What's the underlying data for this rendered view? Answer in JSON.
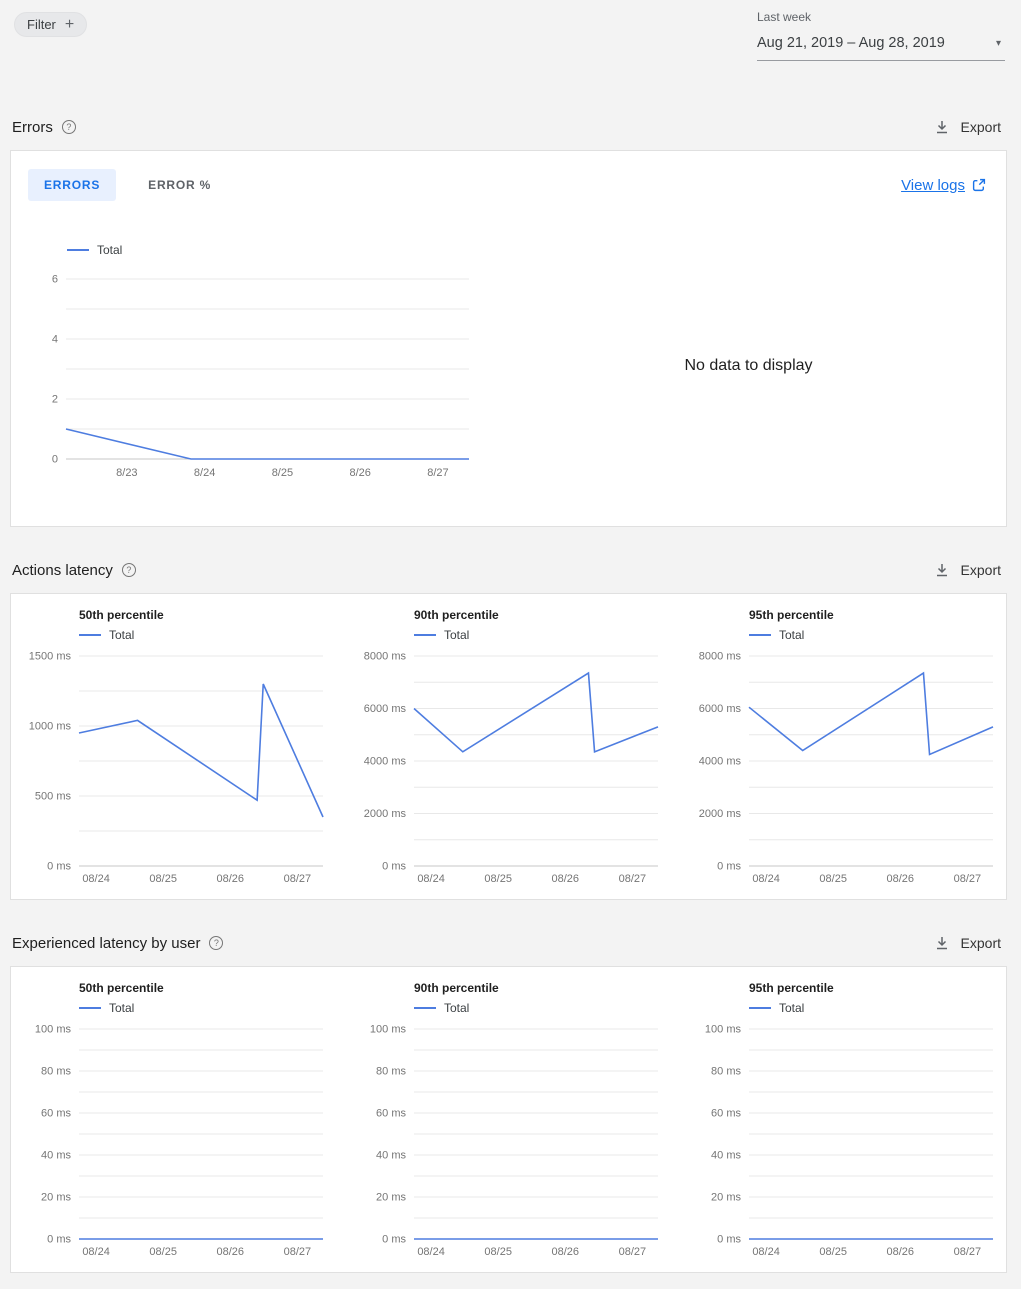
{
  "colors": {
    "line": "#4e7de0",
    "link": "#1a73e8",
    "tab_active_bg": "#e8f0fe"
  },
  "icons": {
    "plus": "+",
    "caret_down": "▾",
    "question": "?"
  },
  "toolbar": {
    "filter_label": "Filter",
    "period_label": "Last week",
    "date_range": "Aug 21, 2019 – Aug 28, 2019"
  },
  "errors_section": {
    "title": "Errors",
    "export_label": "Export",
    "tabs": [
      {
        "label": "ERRORS",
        "active": true
      },
      {
        "label": "ERROR %",
        "active": false
      }
    ],
    "view_logs_label": "View logs",
    "no_data_text": "No data to display"
  },
  "actions_latency_section": {
    "title": "Actions latency",
    "export_label": "Export"
  },
  "experienced_latency_section": {
    "title": "Experienced latency by user",
    "export_label": "Export"
  },
  "chart_data": [
    {
      "id": "errors-total",
      "type": "line",
      "title": "Errors",
      "ylim": [
        0,
        6
      ],
      "y_major_step": 2,
      "y_minor_step": 1,
      "y_suffix": "",
      "grid": true,
      "legend_position": "top-left",
      "x_unit": "fraction of plot width",
      "x_ticks": [
        {
          "label": "8/23",
          "pos": 0.151
        },
        {
          "label": "8/24",
          "pos": 0.344
        },
        {
          "label": "8/25",
          "pos": 0.537
        },
        {
          "label": "8/26",
          "pos": 0.73
        },
        {
          "label": "8/27",
          "pos": 0.923
        }
      ],
      "series": [
        {
          "name": "Total",
          "points": [
            [
              0,
              1
            ],
            [
              0.31,
              0
            ],
            [
              1,
              0
            ]
          ]
        }
      ]
    },
    {
      "id": "actions-latency-p50",
      "type": "line",
      "title": "50th percentile",
      "ylim": [
        0,
        1500
      ],
      "y_major_step": 500,
      "y_minor_step": 250,
      "y_suffix": " ms",
      "grid": true,
      "legend_position": "top-left",
      "x_unit": "fraction of plot width",
      "x_ticks": [
        {
          "label": "08/24",
          "pos": 0.07
        },
        {
          "label": "08/25",
          "pos": 0.345
        },
        {
          "label": "08/26",
          "pos": 0.62
        },
        {
          "label": "08/27",
          "pos": 0.895
        }
      ],
      "series": [
        {
          "name": "Total",
          "points": [
            [
              0,
              950
            ],
            [
              0.24,
              1040
            ],
            [
              0.73,
              470
            ],
            [
              0.755,
              1300
            ],
            [
              1,
              350
            ]
          ]
        }
      ]
    },
    {
      "id": "actions-latency-p90",
      "type": "line",
      "title": "90th percentile",
      "ylim": [
        0,
        8000
      ],
      "y_major_step": 2000,
      "y_minor_step": 1000,
      "y_suffix": " ms",
      "grid": true,
      "legend_position": "top-left",
      "x_unit": "fraction of plot width",
      "x_ticks": [
        {
          "label": "08/24",
          "pos": 0.07
        },
        {
          "label": "08/25",
          "pos": 0.345
        },
        {
          "label": "08/26",
          "pos": 0.62
        },
        {
          "label": "08/27",
          "pos": 0.895
        }
      ],
      "series": [
        {
          "name": "Total",
          "points": [
            [
              0,
              6000
            ],
            [
              0.2,
              4350
            ],
            [
              0.715,
              7350
            ],
            [
              0.74,
              4350
            ],
            [
              1,
              5300
            ]
          ]
        }
      ]
    },
    {
      "id": "actions-latency-p95",
      "type": "line",
      "title": "95th percentile",
      "ylim": [
        0,
        8000
      ],
      "y_major_step": 2000,
      "y_minor_step": 1000,
      "y_suffix": " ms",
      "grid": true,
      "legend_position": "top-left",
      "x_unit": "fraction of plot width",
      "x_ticks": [
        {
          "label": "08/24",
          "pos": 0.07
        },
        {
          "label": "08/25",
          "pos": 0.345
        },
        {
          "label": "08/26",
          "pos": 0.62
        },
        {
          "label": "08/27",
          "pos": 0.895
        }
      ],
      "series": [
        {
          "name": "Total",
          "points": [
            [
              0,
              6050
            ],
            [
              0.22,
              4400
            ],
            [
              0.715,
              7350
            ],
            [
              0.74,
              4250
            ],
            [
              1,
              5300
            ]
          ]
        }
      ]
    },
    {
      "id": "experienced-latency-p50",
      "type": "line",
      "title": "50th percentile",
      "ylim": [
        0,
        100
      ],
      "y_major_step": 20,
      "y_minor_step": 10,
      "y_suffix": " ms",
      "grid": true,
      "legend_position": "top-left",
      "x_unit": "fraction of plot width",
      "x_ticks": [
        {
          "label": "08/24",
          "pos": 0.07
        },
        {
          "label": "08/25",
          "pos": 0.345
        },
        {
          "label": "08/26",
          "pos": 0.62
        },
        {
          "label": "08/27",
          "pos": 0.895
        }
      ],
      "series": [
        {
          "name": "Total",
          "points": [
            [
              0,
              0
            ],
            [
              1,
              0
            ]
          ]
        }
      ]
    },
    {
      "id": "experienced-latency-p90",
      "type": "line",
      "title": "90th percentile",
      "ylim": [
        0,
        100
      ],
      "y_major_step": 20,
      "y_minor_step": 10,
      "y_suffix": " ms",
      "grid": true,
      "legend_position": "top-left",
      "x_unit": "fraction of plot width",
      "x_ticks": [
        {
          "label": "08/24",
          "pos": 0.07
        },
        {
          "label": "08/25",
          "pos": 0.345
        },
        {
          "label": "08/26",
          "pos": 0.62
        },
        {
          "label": "08/27",
          "pos": 0.895
        }
      ],
      "series": [
        {
          "name": "Total",
          "points": [
            [
              0,
              0
            ],
            [
              1,
              0
            ]
          ]
        }
      ]
    },
    {
      "id": "experienced-latency-p95",
      "type": "line",
      "title": "95th percentile",
      "ylim": [
        0,
        100
      ],
      "y_major_step": 20,
      "y_minor_step": 10,
      "y_suffix": " ms",
      "grid": true,
      "legend_position": "top-left",
      "x_unit": "fraction of plot width",
      "x_ticks": [
        {
          "label": "08/24",
          "pos": 0.07
        },
        {
          "label": "08/25",
          "pos": 0.345
        },
        {
          "label": "08/26",
          "pos": 0.62
        },
        {
          "label": "08/27",
          "pos": 0.895
        }
      ],
      "series": [
        {
          "name": "Total",
          "points": [
            [
              0,
              0
            ],
            [
              1,
              0
            ]
          ]
        }
      ]
    }
  ]
}
